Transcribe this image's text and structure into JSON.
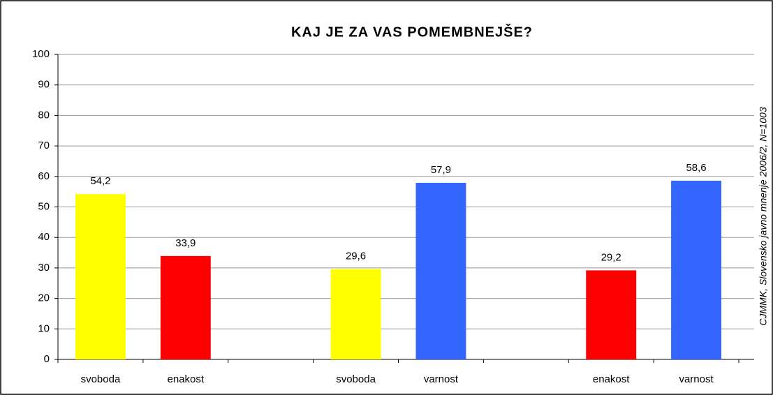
{
  "chart_data": {
    "type": "bar",
    "title": "KAJ JE ZA VAS POMEMBNEJŠE?",
    "annotation": "CJMMK, Slovensko javno mnenje 2006/2, N=1003",
    "categories": [
      "svoboda",
      "enakost",
      null,
      "svoboda",
      "varnost",
      null,
      "enakost",
      "varnost"
    ],
    "values": [
      54.2,
      33.9,
      null,
      29.6,
      57.9,
      null,
      29.2,
      58.6
    ],
    "value_labels": [
      "54,2",
      "33,9",
      null,
      "29,6",
      "57,9",
      null,
      "29,2",
      "58,6"
    ],
    "colors": [
      "#ffff00",
      "#ff0000",
      null,
      "#ffff00",
      "#3366ff",
      null,
      "#ff0000",
      "#3366ff"
    ],
    "ylim": [
      0,
      100
    ],
    "yticks": [
      0,
      10,
      20,
      30,
      40,
      50,
      60,
      70,
      80,
      90,
      100
    ],
    "grid": true
  }
}
